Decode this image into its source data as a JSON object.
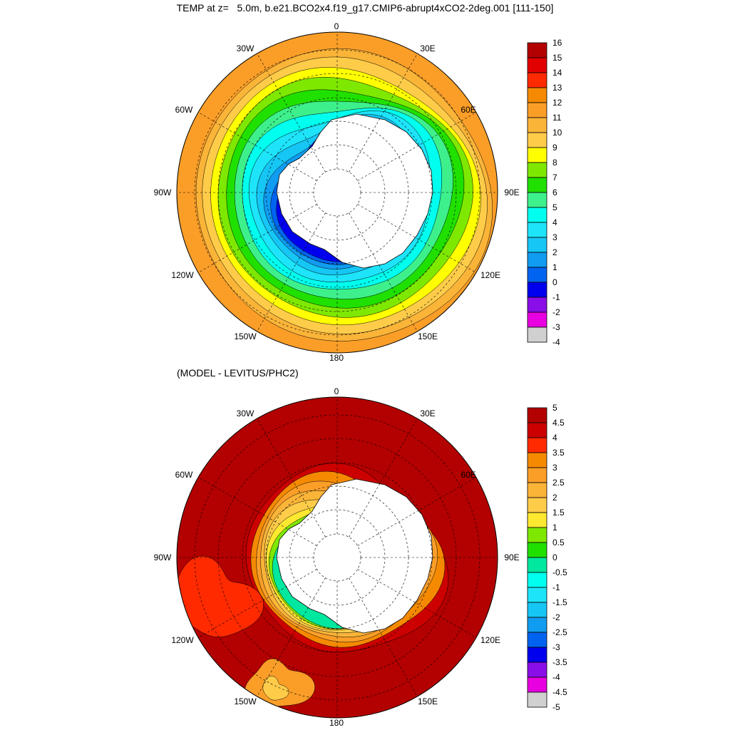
{
  "title": "TEMP at z=   5.0m, b.e21.BCO2x4.f19_g17.CMIP6-abrupt4xCO2-2deg.001 [111-150]",
  "subtitle": "(MODEL - LEVITUS/PHC2)",
  "longitude_labels": [
    "0",
    "30E",
    "60E",
    "90E",
    "120E",
    "150E",
    "180",
    "150W",
    "120W",
    "90W",
    "60W",
    "30W"
  ],
  "top_map": {
    "label_bar_values": [
      "16",
      "15",
      "14",
      "13",
      "12",
      "11",
      "10",
      "9",
      "8",
      "7",
      "6",
      "5",
      "4",
      "3",
      "2",
      "1",
      "0",
      "-1",
      "-2",
      "-3",
      "-4"
    ],
    "colors": [
      "#b30000",
      "#e30000",
      "#ff2a00",
      "#f58a00",
      "#fa9e28",
      "#fab438",
      "#ffcc4a",
      "#ffff00",
      "#7fe800",
      "#20e000",
      "#3ef08c",
      "#00ffee",
      "#1ee4fa",
      "#16c6f5",
      "#109cf0",
      "#0064f0",
      "#0000ee",
      "#8a0ee8",
      "#e800e0",
      "#d0d0d0",
      "#707070"
    ]
  },
  "bottom_map": {
    "label_bar_values": [
      "5",
      "4.5",
      "4",
      "3.5",
      "3",
      "2.5",
      "2",
      "1.5",
      "1",
      "0.5",
      "0",
      "-0.5",
      "-1",
      "-1.5",
      "-2",
      "-2.5",
      "-3",
      "-3.5",
      "-4",
      "-4.5",
      "-5"
    ],
    "colors": [
      "#b30000",
      "#cc0000",
      "#ff2a00",
      "#f58a00",
      "#fa9e28",
      "#fab438",
      "#ffcc4a",
      "#ffe830",
      "#7fe800",
      "#20e000",
      "#00e8a0",
      "#00ffee",
      "#1ee4fa",
      "#16c6f5",
      "#109cf0",
      "#0064f0",
      "#0000ee",
      "#8a0ee8",
      "#e800e0",
      "#d0d0d0",
      "#707070"
    ]
  }
}
